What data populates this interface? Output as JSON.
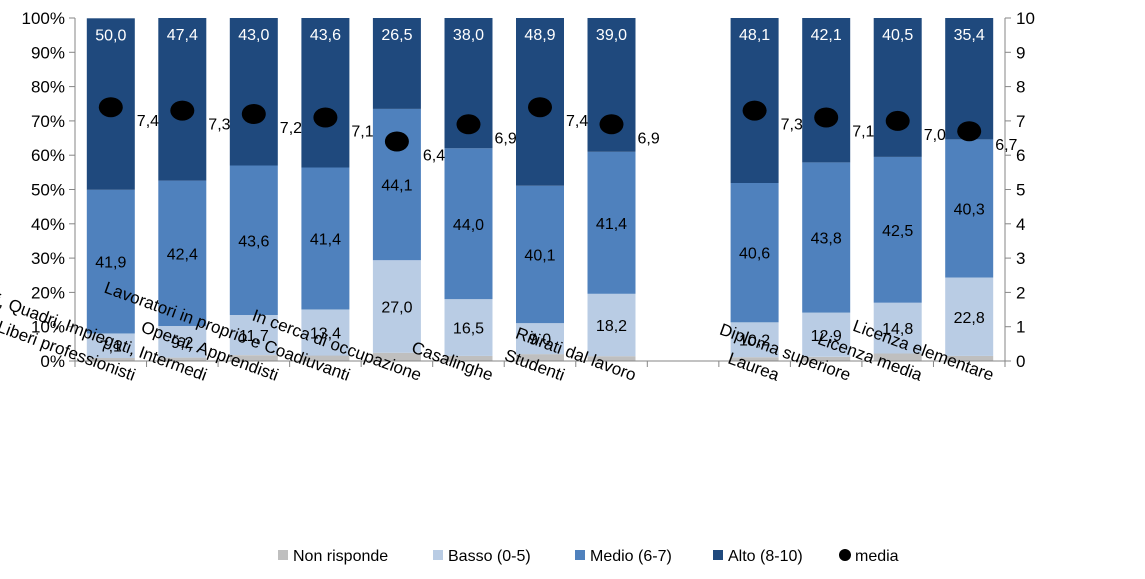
{
  "chart_data": {
    "type": "bar",
    "stacked": true,
    "normalized_percent": true,
    "categories": [
      "Dirigenti, Imprenditori, Liberi professionisti",
      "Direttivi, Quadri, Impiegati, Intermedi",
      "Operai, Apprendisti",
      "Lavoratori in proprio e Coadiuvanti",
      "In cerca di occupazione",
      "Casalinghe",
      "Studenti",
      "Ritirati dal lavoro",
      "",
      "Laurea",
      "Diploma superiore",
      "Licenza media",
      "Licenza elementare"
    ],
    "series": [
      {
        "name": "Non risponde",
        "color": "#bfbfbf",
        "values": [
          0.9,
          1.0,
          1.7,
          1.6,
          2.4,
          1.5,
          2.0,
          1.4,
          null,
          1.1,
          1.2,
          2.2,
          1.5
        ]
      },
      {
        "name": "Basso (0-5)",
        "color": "#b9cce4",
        "values": [
          7.1,
          9.2,
          11.7,
          13.4,
          27.0,
          16.5,
          9.0,
          18.2,
          null,
          10.2,
          12.9,
          14.8,
          22.8
        ]
      },
      {
        "name": "Medio (6-7)",
        "color": "#4f81bd",
        "values": [
          41.9,
          42.4,
          43.6,
          41.4,
          44.1,
          44.0,
          40.1,
          41.4,
          null,
          40.6,
          43.8,
          42.5,
          40.3
        ]
      },
      {
        "name": "Alto (8-10)",
        "color": "#1f497d",
        "values": [
          50.0,
          47.4,
          43.0,
          43.6,
          26.5,
          38.0,
          48.9,
          39.0,
          null,
          48.1,
          42.1,
          40.5,
          35.4
        ]
      }
    ],
    "data_labels": {
      "Basso (0-5)": [
        "7,1",
        "9,2",
        "11,7",
        "13,4",
        "27,0",
        "16,5",
        "9,0",
        "18,2",
        "",
        "10,2",
        "12,9",
        "14,8",
        "22,8"
      ],
      "Medio (6-7)": [
        "41,9",
        "42,4",
        "43,6",
        "41,4",
        "44,1",
        "44,0",
        "40,1",
        "41,4",
        "",
        "40,6",
        "43,8",
        "42,5",
        "40,3"
      ],
      "Alto (8-10)": [
        "50,0",
        "47,4",
        "43,0",
        "43,6",
        "26,5",
        "38,0",
        "48,9",
        "39,0",
        "",
        "48,1",
        "42,1",
        "40,5",
        "35,4"
      ]
    },
    "media": {
      "name": "media",
      "axis": "right",
      "values": [
        7.4,
        7.3,
        7.2,
        7.1,
        6.4,
        6.9,
        7.4,
        6.9,
        null,
        7.3,
        7.1,
        7.0,
        6.7
      ],
      "labels": [
        "7,4",
        "7,3",
        "7,2",
        "7,1",
        "6,4",
        "6,9",
        "7,4",
        "6,9",
        "",
        "7,3",
        "7,1",
        "7,0",
        "6,7"
      ]
    },
    "y_left": {
      "ticks": [
        "0%",
        "10%",
        "20%",
        "30%",
        "40%",
        "50%",
        "60%",
        "70%",
        "80%",
        "90%",
        "100%"
      ],
      "ylim": [
        0,
        100
      ]
    },
    "y_right": {
      "ticks": [
        "0",
        "1",
        "2",
        "3",
        "4",
        "5",
        "6",
        "7",
        "8",
        "9",
        "10"
      ],
      "ylim": [
        0,
        10
      ]
    },
    "title": "",
    "xlabel": "",
    "ylabel": "",
    "legend": {
      "position": "bottom",
      "entries": [
        "Non risponde",
        "Basso (0-5)",
        "Medio (6-7)",
        "Alto (8-10)",
        "media"
      ]
    },
    "grid": false
  }
}
